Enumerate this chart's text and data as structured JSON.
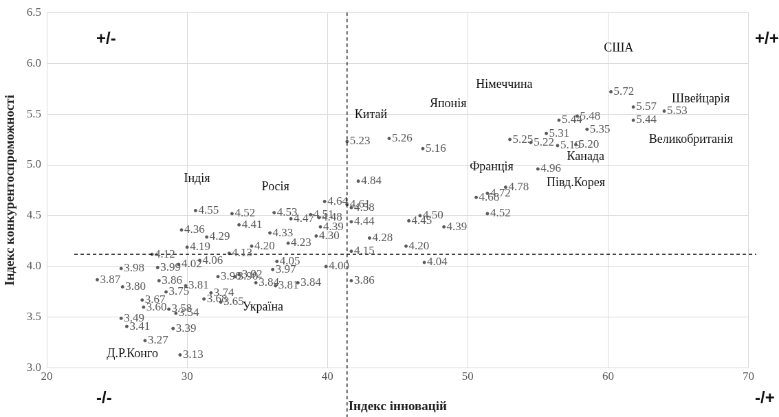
{
  "chart_data": {
    "type": "scatter",
    "xlabel": "Індекс інновацій",
    "ylabel": "Індекс конкурентоспроможності",
    "xlim": [
      20,
      70
    ],
    "xticks": [
      20,
      30,
      40,
      50,
      60,
      70
    ],
    "ylim": [
      3,
      6.5
    ],
    "yticks": [
      {
        "value": 3,
        "label": "3.0"
      },
      {
        "value": 3.5,
        "label": "3.5"
      },
      {
        "value": 4,
        "label": "4.0"
      },
      {
        "value": 4.5,
        "label": "4.5"
      },
      {
        "value": 5,
        "label": "5.0"
      },
      {
        "value": 5.5,
        "label": "5.5"
      },
      {
        "value": 6,
        "label": "6.0"
      },
      {
        "value": 6.5,
        "label": "6.5"
      }
    ],
    "grid": true,
    "legend": false,
    "marker": "circle",
    "data_labels": true,
    "series": [
      {
        "color": "#595959",
        "x": [
          30.6,
          33.2,
          36.2,
          37.4,
          38.8,
          39.4,
          39.5,
          29.6,
          33.7,
          31.4,
          39.2,
          30.0,
          27.5,
          34.6,
          33.0,
          41.7,
          36.4,
          29.4,
          30.9,
          25.3,
          27.9,
          23.6,
          25.4,
          28.0,
          29.9,
          28.5,
          31.7,
          36.3,
          37.9,
          34.9,
          33.4,
          33.7,
          32.2,
          36.1,
          39.9,
          41.7,
          31.2,
          32.4,
          26.8,
          26.9,
          28.7,
          29.2,
          25.3,
          25.7,
          29.0,
          27.0,
          29.5,
          39.8,
          41.4,
          41.7,
          42.2,
          41.7,
          43.0,
          41.4,
          44.4,
          46.8,
          45.6,
          46.9,
          45.8,
          46.6,
          48.3,
          50.6,
          51.4,
          52.7,
          51.4,
          55.0,
          53.0,
          54.5,
          55.6,
          56.4,
          57.7,
          56.5,
          57.8,
          58.5,
          60.2,
          61.8,
          64.0,
          61.8,
          35.9,
          37.2
        ],
        "values": [
          4.55,
          4.52,
          4.53,
          4.47,
          4.51,
          4.48,
          4.39,
          4.36,
          4.41,
          4.29,
          4.3,
          4.19,
          4.12,
          4.2,
          4.13,
          4.15,
          4.05,
          4.02,
          4.06,
          3.98,
          3.99,
          3.87,
          3.8,
          3.86,
          3.81,
          3.75,
          3.74,
          3.81,
          3.84,
          3.84,
          3.9,
          3.92,
          3.9,
          3.97,
          4.0,
          3.86,
          3.68,
          3.65,
          3.67,
          3.6,
          3.58,
          3.54,
          3.49,
          3.41,
          3.39,
          3.27,
          3.13,
          4.64,
          4.61,
          4.58,
          4.84,
          4.44,
          4.28,
          5.23,
          5.26,
          5.16,
          4.2,
          4.04,
          4.45,
          4.5,
          4.39,
          4.68,
          4.72,
          4.78,
          4.52,
          4.96,
          5.25,
          5.22,
          5.31,
          5.19,
          5.2,
          5.44,
          5.48,
          5.35,
          5.72,
          5.57,
          5.53,
          5.44,
          4.33,
          4.23
        ],
        "value_labels": [
          "4.55",
          "4.52",
          "4.53",
          "4.47",
          "4.51",
          "4.48",
          "4.39",
          "4.36",
          "4.41",
          "4.29",
          "4.30",
          "4.19",
          "4.12",
          "4.20",
          "4.13",
          "4.15",
          "4.05",
          "4.02",
          "4.06",
          "3.98",
          "3.99",
          "3.87",
          "3.80",
          "3.86",
          "3.81",
          "3.75",
          "3.74",
          "3.81",
          "3.84",
          "3.84",
          "3.90",
          "3.92",
          "3.90",
          "3.97",
          "4.00",
          "3.86",
          "3.68",
          "3.65",
          "3.67",
          "3.60",
          "3.58",
          "3.54",
          "3.49",
          "3.41",
          "3.39",
          "3.27",
          "3.13",
          "4.64",
          "4.61",
          "4.58",
          "4.84",
          "4.44",
          "4.28",
          "5.23",
          "5.26",
          "5.16",
          "4.20",
          "4.04",
          "4.45",
          "4.50",
          "4.39",
          "4.68",
          "4.72",
          "4.78",
          "4.52",
          "4.96",
          "5.25",
          "5.22",
          "5.31",
          "5.19",
          "5.20",
          "5.44",
          "5.48",
          "5.35",
          "5.72",
          "5.57",
          "5.53",
          "5.44",
          "4.33",
          "4.23"
        ]
      }
    ],
    "ref_lines": [
      {
        "axis": "x",
        "value": 41.4,
        "line_style": "dashed",
        "color": "#000000"
      },
      {
        "axis": "y",
        "value": 4.12,
        "line_style": "dashed",
        "color": "#000000"
      }
    ],
    "annotations": [
      "США",
      "Німеччина",
      "Японія",
      "Китай",
      "Швейцарія",
      "Великобританія",
      "Канада",
      "Франція",
      "Півд.Корея",
      "Індія",
      "Росія",
      "Україна",
      "Д.Р.Конго",
      "+/-",
      "+/+",
      "-/-",
      "-/+"
    ]
  }
}
